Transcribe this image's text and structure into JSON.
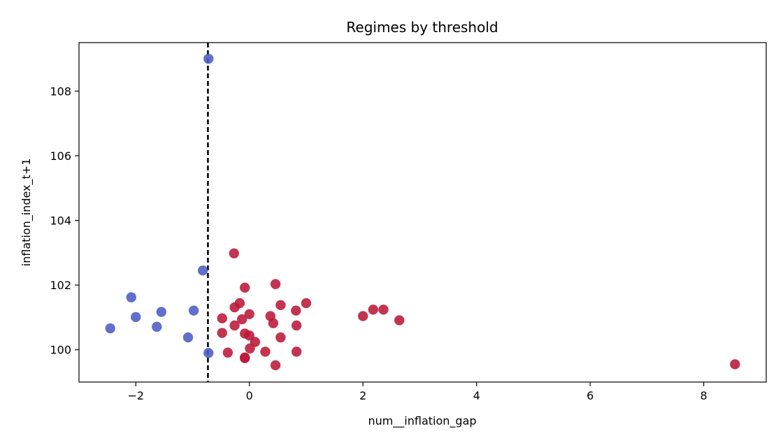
{
  "chart_data": {
    "type": "scatter",
    "title": "Regimes by threshold",
    "xlabel": "num__inflation_gap",
    "ylabel": "inflation_index_t+1",
    "xlim": [
      -3.0,
      9.1
    ],
    "ylim": [
      99.0,
      109.5
    ],
    "xticks": [
      -2,
      0,
      2,
      4,
      6,
      8
    ],
    "yticks": [
      100,
      102,
      104,
      106,
      108
    ],
    "threshold": {
      "x": -0.73,
      "style": "dashed",
      "color": "#000000"
    },
    "grid": false,
    "legend": "none",
    "series": [
      {
        "color": "#4c5cc5",
        "points": [
          [
            -0.72,
            109.0
          ],
          [
            -0.82,
            102.45
          ],
          [
            -2.08,
            101.62
          ],
          [
            -2.0,
            101.01
          ],
          [
            -1.55,
            101.17
          ],
          [
            -0.98,
            101.21
          ],
          [
            -2.45,
            100.66
          ],
          [
            -1.63,
            100.71
          ],
          [
            -1.08,
            100.38
          ],
          [
            -0.72,
            99.9
          ]
        ]
      },
      {
        "color": "#bb1838",
        "points": [
          [
            -0.27,
            102.98
          ],
          [
            0.46,
            102.03
          ],
          [
            -0.08,
            101.92
          ],
          [
            -0.17,
            101.44
          ],
          [
            -0.26,
            101.31
          ],
          [
            1.0,
            101.44
          ],
          [
            0.55,
            101.38
          ],
          [
            0.82,
            101.21
          ],
          [
            0.0,
            101.1
          ],
          [
            0.37,
            101.04
          ],
          [
            -0.48,
            100.97
          ],
          [
            -0.13,
            100.94
          ],
          [
            0.42,
            100.82
          ],
          [
            -0.26,
            100.75
          ],
          [
            0.83,
            100.75
          ],
          [
            -0.48,
            100.52
          ],
          [
            -0.08,
            100.5
          ],
          [
            0.0,
            100.44
          ],
          [
            0.55,
            100.38
          ],
          [
            0.1,
            100.24
          ],
          [
            0.01,
            100.04
          ],
          [
            -0.38,
            99.91
          ],
          [
            0.28,
            99.94
          ],
          [
            0.83,
            99.94
          ],
          [
            -0.08,
            99.76
          ],
          [
            -0.08,
            99.74
          ],
          [
            0.46,
            99.52
          ],
          [
            2.0,
            101.04
          ],
          [
            2.18,
            101.24
          ],
          [
            2.36,
            101.24
          ],
          [
            2.64,
            100.91
          ],
          [
            8.55,
            99.55
          ]
        ]
      }
    ]
  }
}
